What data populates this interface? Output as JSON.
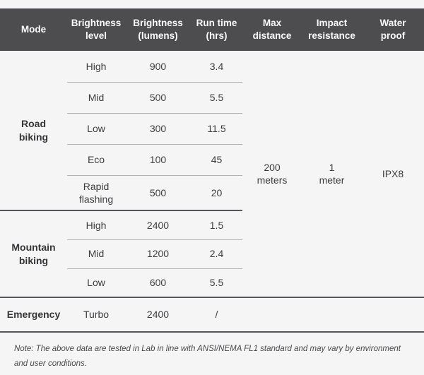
{
  "page": {
    "background": "#f5f5f6",
    "header_bg": "#4d4d4f",
    "header_text_color": "#fafafa",
    "body_text_color": "#3d3d3f",
    "light_divider_color": "#b3b3b5",
    "dark_divider_color": "#56565a"
  },
  "table": {
    "header": {
      "columns": [
        {
          "label": "Mode"
        },
        {
          "label": "Brightness\nlevel"
        },
        {
          "label": "Brightness\n(lumens)"
        },
        {
          "label": "Run time\n(hrs)"
        },
        {
          "label": "Max\ndistance"
        },
        {
          "label": "Impact\nresistance"
        },
        {
          "label": "Water\nproof"
        }
      ]
    },
    "sections": [
      {
        "mode": "Road\nbiking",
        "rows": [
          [
            "High",
            "900",
            "3.4"
          ],
          [
            "Mid",
            "500",
            "5.5"
          ],
          [
            "Low",
            "300",
            "11.5"
          ],
          [
            "Eco",
            "100",
            "45"
          ],
          [
            "Rapid\nflashing",
            "500",
            "20"
          ]
        ]
      },
      {
        "mode": "Mountain\nbiking",
        "rows": [
          [
            "High",
            "2400",
            "1.5"
          ],
          [
            "Mid",
            "1200",
            "2.4"
          ],
          [
            "Low",
            "600",
            "5.5"
          ]
        ]
      },
      {
        "mode": "Emergency",
        "rows": [
          [
            "Turbo",
            "2400",
            "/"
          ]
        ]
      }
    ],
    "merged": {
      "max_distance": "200\nmeters",
      "impact_resistance": "1\nmeter",
      "water_proof": "IPX8"
    }
  },
  "note": "Note: The above data are tested in Lab in line with ANSI/NEMA FL1 standard and may vary by environment and user conditions."
}
